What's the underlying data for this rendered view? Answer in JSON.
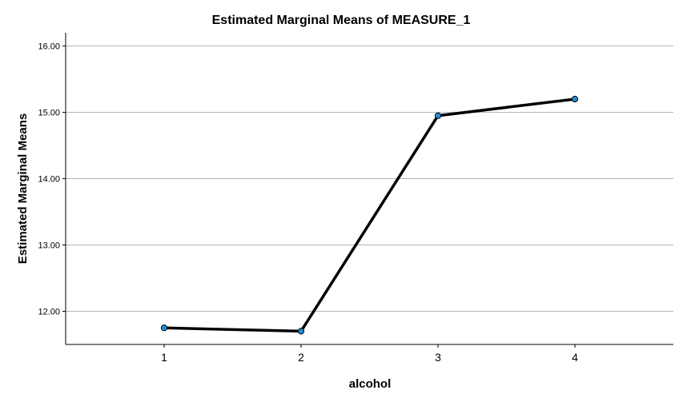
{
  "chart_data": {
    "type": "line",
    "title": "Estimated Marginal Means of MEASURE_1",
    "xlabel": "alcohol",
    "ylabel": "Estimated Marginal Means",
    "categories": [
      "1",
      "2",
      "3",
      "4"
    ],
    "values": [
      11.75,
      11.7,
      14.95,
      15.2
    ],
    "ylim": [
      11.5,
      16.2
    ],
    "yticks": [
      "12.00",
      "13.00",
      "14.00",
      "15.00",
      "16.00"
    ],
    "grid": true,
    "legend": "none",
    "line_color": "#000000",
    "marker_color": "#1f8fd6"
  }
}
